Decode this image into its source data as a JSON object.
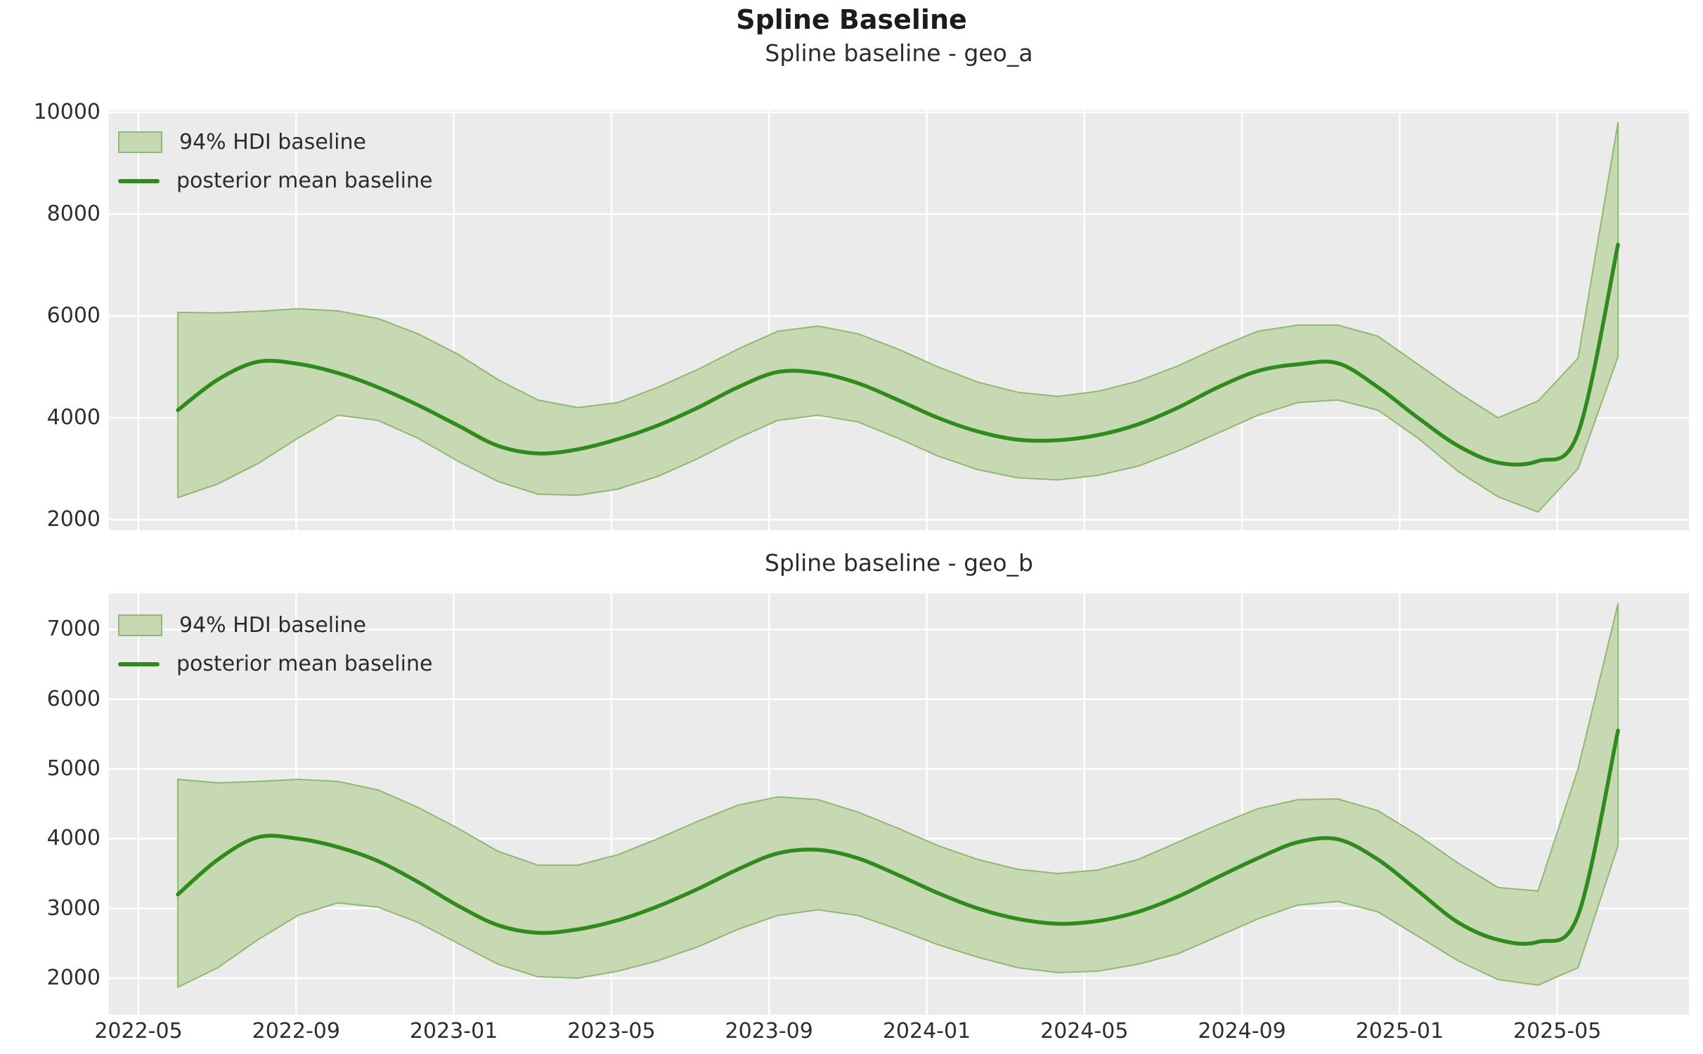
{
  "figure": {
    "title": "Spline Baseline"
  },
  "style": {
    "figure_background": "#ffffff",
    "plot_background": "#ebebeb",
    "grid_color": "#ffffff",
    "band_fill": "#c6d9b3",
    "band_edge": "#8eb873",
    "line_color": "#2e8b1c",
    "text_color": "#2e2e2e",
    "title_color": "#1c1c1c"
  },
  "x_axis": {
    "tick_labels": [
      "2022-05",
      "2022-09",
      "2023-01",
      "2023-05",
      "2023-09",
      "2024-01",
      "2024-05",
      "2024-09",
      "2025-01",
      "2025-05"
    ]
  },
  "legend_items": [
    {
      "label": "94% HDI baseline",
      "swatch": "patch"
    },
    {
      "label": "posterior mean baseline",
      "swatch": "line"
    }
  ],
  "chart_data": [
    {
      "type": "area",
      "title": "Spline baseline - geo_a",
      "geo": "geo_a",
      "grid": true,
      "legend_position": "upper left",
      "x": [
        "2022-06",
        "2022-07",
        "2022-08",
        "2022-09",
        "2022-10",
        "2022-11",
        "2022-12",
        "2023-01",
        "2023-02",
        "2023-03",
        "2023-04",
        "2023-05",
        "2023-06",
        "2023-07",
        "2023-08",
        "2023-09",
        "2023-10",
        "2023-11",
        "2023-12",
        "2024-01",
        "2024-02",
        "2024-03",
        "2024-04",
        "2024-05",
        "2024-06",
        "2024-07",
        "2024-08",
        "2024-09",
        "2024-10",
        "2024-11",
        "2024-12",
        "2025-01",
        "2025-02",
        "2025-03",
        "2025-04",
        "2025-05",
        "2025-06"
      ],
      "ylim": [
        1793,
        10040
      ],
      "yticks": [
        2000,
        4000,
        6000,
        8000,
        10000
      ],
      "series": [
        {
          "name": "94% HDI baseline",
          "role": "band",
          "lower": [
            2430,
            2700,
            3100,
            3600,
            4050,
            3950,
            3600,
            3150,
            2750,
            2500,
            2480,
            2600,
            2850,
            3200,
            3600,
            3950,
            4050,
            3920,
            3600,
            3250,
            2980,
            2820,
            2780,
            2870,
            3050,
            3350,
            3700,
            4050,
            4300,
            4350,
            4150,
            3600,
            2950,
            2450,
            2150,
            3000,
            5200
          ],
          "upper": [
            6070,
            6060,
            6090,
            6140,
            6100,
            5950,
            5650,
            5250,
            4750,
            4350,
            4200,
            4300,
            4600,
            4950,
            5350,
            5700,
            5800,
            5650,
            5350,
            5000,
            4700,
            4500,
            4420,
            4520,
            4720,
            5020,
            5380,
            5700,
            5820,
            5820,
            5600,
            5050,
            4500,
            4000,
            4330,
            5170,
            9800
          ]
        },
        {
          "name": "posterior mean baseline",
          "role": "line",
          "values": [
            4150,
            4750,
            5100,
            5060,
            4880,
            4600,
            4250,
            3850,
            3450,
            3300,
            3380,
            3580,
            3850,
            4200,
            4600,
            4900,
            4880,
            4680,
            4350,
            4000,
            3730,
            3570,
            3560,
            3660,
            3870,
            4200,
            4600,
            4920,
            5050,
            5070,
            4600,
            4000,
            3450,
            3120,
            3150,
            3700,
            7400
          ]
        }
      ]
    },
    {
      "type": "area",
      "title": "Spline baseline - geo_b",
      "geo": "geo_b",
      "grid": true,
      "legend_position": "upper left",
      "x": [
        "2022-06",
        "2022-07",
        "2022-08",
        "2022-09",
        "2022-10",
        "2022-11",
        "2022-12",
        "2023-01",
        "2023-02",
        "2023-03",
        "2023-04",
        "2023-05",
        "2023-06",
        "2023-07",
        "2023-08",
        "2023-09",
        "2023-10",
        "2023-11",
        "2023-12",
        "2024-01",
        "2024-02",
        "2024-03",
        "2024-04",
        "2024-05",
        "2024-06",
        "2024-07",
        "2024-08",
        "2024-09",
        "2024-10",
        "2024-11",
        "2024-12",
        "2025-01",
        "2025-02",
        "2025-03",
        "2025-04",
        "2025-05",
        "2025-06"
      ],
      "ylim": [
        1476,
        7518
      ],
      "yticks": [
        2000,
        3000,
        4000,
        5000,
        6000,
        7000
      ],
      "series": [
        {
          "name": "94% HDI baseline",
          "role": "band",
          "lower": [
            1870,
            2150,
            2550,
            2900,
            3080,
            3020,
            2800,
            2500,
            2200,
            2020,
            2000,
            2100,
            2250,
            2450,
            2700,
            2900,
            2980,
            2900,
            2700,
            2480,
            2300,
            2150,
            2080,
            2100,
            2200,
            2350,
            2600,
            2850,
            3050,
            3100,
            2950,
            2600,
            2250,
            1980,
            1900,
            2150,
            3900
          ],
          "upper": [
            4850,
            4800,
            4820,
            4850,
            4820,
            4700,
            4450,
            4150,
            3820,
            3620,
            3620,
            3770,
            4000,
            4250,
            4480,
            4600,
            4560,
            4380,
            4150,
            3900,
            3700,
            3560,
            3500,
            3550,
            3700,
            3950,
            4200,
            4430,
            4560,
            4570,
            4400,
            4050,
            3650,
            3300,
            3250,
            5000,
            7370
          ]
        },
        {
          "name": "posterior mean baseline",
          "role": "line",
          "values": [
            3200,
            3700,
            4020,
            4000,
            3880,
            3680,
            3380,
            3040,
            2760,
            2650,
            2700,
            2830,
            3030,
            3280,
            3560,
            3790,
            3840,
            3720,
            3480,
            3220,
            3000,
            2850,
            2780,
            2820,
            2950,
            3170,
            3450,
            3720,
            3950,
            3990,
            3700,
            3250,
            2800,
            2550,
            2520,
            2900,
            5550
          ]
        }
      ]
    }
  ]
}
